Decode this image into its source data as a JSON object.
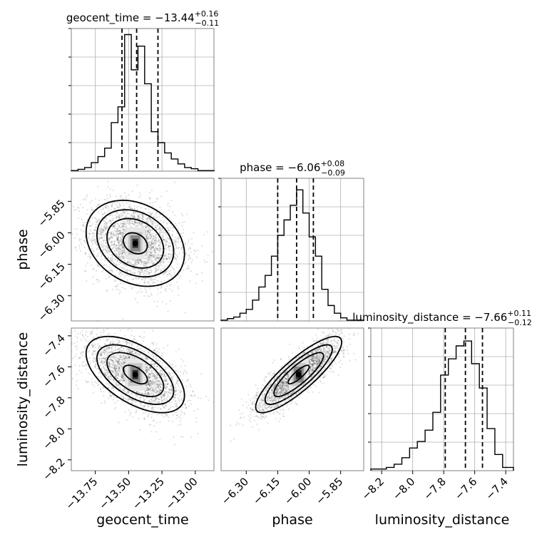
{
  "chart_data": {
    "type": "corner",
    "parameters": [
      "geocent_time",
      "phase",
      "luminosity_distance"
    ],
    "colors": {
      "line": "#000000",
      "grid": "#b0b0b0",
      "frame": "#808080"
    },
    "diagonal": [
      {
        "param": "geocent_time",
        "title_main": "geocent_time = −13.44",
        "title_sup": "+0.16",
        "title_sub": "−0.11",
        "median": -13.44,
        "q16": -13.55,
        "q84": -13.28,
        "xlim": [
          -13.93,
          -12.86
        ],
        "bins": [
          -13.93,
          -13.88,
          -13.83,
          -13.78,
          -13.73,
          -13.68,
          -13.63,
          -13.58,
          -13.53,
          -13.48,
          -13.43,
          -13.38,
          -13.33,
          -13.28,
          -13.23,
          -13.18,
          -13.13,
          -13.08,
          -13.03,
          -12.98,
          -12.93,
          -12.86
        ],
        "counts": [
          1,
          3,
          6,
          14,
          24,
          38,
          80,
          106,
          225,
          167,
          206,
          144,
          65,
          47,
          30,
          20,
          12,
          6,
          4,
          1,
          1
        ],
        "ymax": 235
      },
      {
        "param": "phase",
        "title_main": "phase = −6.06",
        "title_sup": "+0.08",
        "title_sub": "−0.09",
        "median": -6.06,
        "q16": -6.15,
        "q84": -5.98,
        "xlim": [
          -6.42,
          -5.74
        ],
        "bins": [
          -6.42,
          -6.39,
          -6.36,
          -6.33,
          -6.3,
          -6.27,
          -6.24,
          -6.21,
          -6.18,
          -6.15,
          -6.12,
          -6.09,
          -6.06,
          -6.03,
          -6.0,
          -5.97,
          -5.94,
          -5.91,
          -5.88,
          -5.85,
          -5.82,
          -5.79,
          -5.74
        ],
        "counts": [
          1,
          3,
          5,
          10,
          15,
          27,
          44,
          59,
          84,
          111,
          131,
          150,
          170,
          140,
          109,
          84,
          41,
          20,
          10,
          4,
          1,
          1
        ],
        "ymax": 185
      },
      {
        "param": "luminosity_distance",
        "title_main": "luminosity_distance = −7.66",
        "title_sup": "+0.11",
        "title_sub": "−0.12",
        "median": -7.66,
        "q16": -7.79,
        "q84": -7.55,
        "xlim": [
          -8.27,
          -7.35
        ],
        "bins": [
          -8.27,
          -8.22,
          -8.17,
          -8.12,
          -8.07,
          -8.02,
          -7.97,
          -7.92,
          -7.87,
          -7.82,
          -7.77,
          -7.72,
          -7.67,
          -7.62,
          -7.57,
          -7.52,
          -7.47,
          -7.42,
          -7.35
        ],
        "counts": [
          1,
          1,
          2,
          4,
          8,
          14,
          18,
          25,
          36,
          59,
          69,
          77,
          80,
          66,
          51,
          26,
          10,
          2
        ],
        "ymax": 88
      }
    ],
    "off_diagonal": [
      {
        "x": "geocent_time",
        "y": "phase",
        "center": [
          -13.45,
          -6.05
        ],
        "spread": [
          0.18,
          0.1
        ],
        "rho": -0.25
      },
      {
        "x": "geocent_time",
        "y": "luminosity_distance",
        "center": [
          -13.45,
          -7.65
        ],
        "spread": [
          0.18,
          0.12
        ],
        "rho": -0.55
      },
      {
        "x": "phase",
        "y": "luminosity_distance",
        "center": [
          -6.05,
          -7.65
        ],
        "spread": [
          0.1,
          0.12
        ],
        "rho": 0.85
      }
    ],
    "axes": {
      "geocent_time": {
        "ticks": [
          -13.75,
          -13.5,
          -13.25,
          -13.0
        ],
        "ticklabels": [
          "−13.75",
          "−13.50",
          "−13.25",
          "−13.00"
        ]
      },
      "phase": {
        "ticks": [
          -6.3,
          -6.15,
          -6.0,
          -5.85
        ],
        "ticklabels": [
          "−6.30",
          "−6.15",
          "−6.00",
          "−5.85"
        ]
      },
      "luminosity_distance": {
        "ticks": [
          -8.2,
          -8.0,
          -7.8,
          -7.6,
          -7.4
        ],
        "ticklabels": [
          "−8.2",
          "−8.0",
          "−7.8",
          "−7.6",
          "−7.4"
        ]
      }
    },
    "axis_labels": {
      "x": [
        "geocent_time",
        "phase",
        "luminosity_distance"
      ],
      "y": [
        "phase",
        "luminosity_distance"
      ]
    },
    "grid": true
  }
}
